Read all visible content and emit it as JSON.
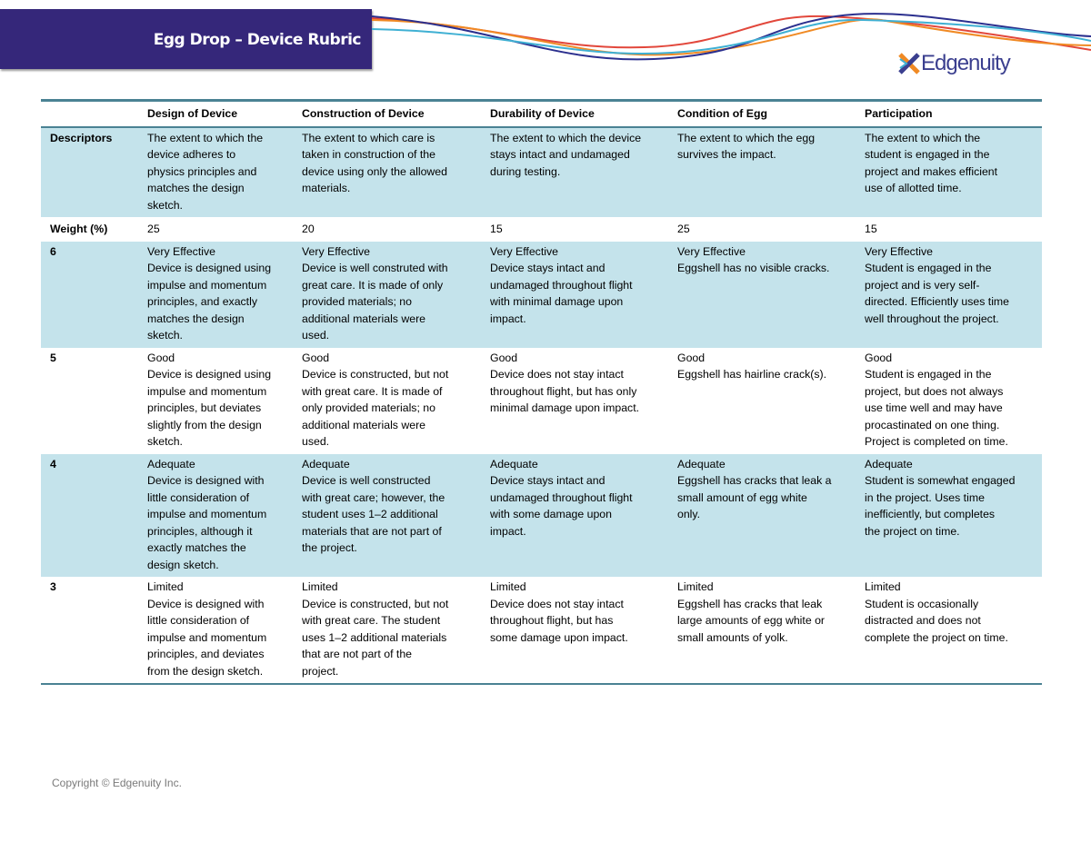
{
  "header": {
    "title": "Egg Drop – Device Rubric",
    "logo_text": "Edgenuity"
  },
  "colors": {
    "banner": "#35277a",
    "row_blue": "#c4e3eb",
    "rule": "#4a8293"
  },
  "table": {
    "columns": [
      "",
      "Design of Device",
      "Construction of Device",
      "Durability of Device",
      "Condition of Egg",
      "Participation"
    ],
    "descriptors": {
      "label": "Descriptors",
      "cells": [
        "The extent to which the\ndevice adheres to\nphysics principles and\nmatches the design\nsketch.",
        "The extent to which care is\ntaken in construction of the\ndevice using only the allowed\nmaterials.",
        "The extent to which the device\nstays intact and undamaged\nduring testing.",
        "The extent to which the egg\nsurvives the impact.",
        "The extent to which the\nstudent is engaged in the\nproject and makes efficient\nuse of allotted time."
      ]
    },
    "weight": {
      "label": "Weight (%)",
      "cells": [
        "25",
        "20",
        "15",
        "25",
        "15"
      ]
    },
    "levels": [
      {
        "score": "6",
        "cells": [
          {
            "level": "Very Effective",
            "text": "Device is designed using\nimpulse and momentum\nprinciples, and exactly\nmatches the design\nsketch."
          },
          {
            "level": "Very Effective",
            "text": "Device is well construted with\ngreat care. It is made of only\nprovided materials; no\nadditional materials were\nused."
          },
          {
            "level": "Very Effective",
            "text": "Device stays intact and\nundamaged throughout flight\nwith minimal damage upon\nimpact."
          },
          {
            "level": "Very Effective",
            "text": "Eggshell has no visible cracks."
          },
          {
            "level": "Very Effective",
            "text": "Student is engaged in the\nproject and is very self-\ndirected. Efficiently uses time\nwell throughout the project."
          }
        ]
      },
      {
        "score": "5",
        "cells": [
          {
            "level": "Good",
            "text": "Device is designed using\nimpulse and momentum\nprinciples, but deviates\nslightly from the design\nsketch."
          },
          {
            "level": "Good",
            "text": "Device is constructed, but not\nwith great care. It is made of\nonly provided materials; no\nadditional materials were\nused."
          },
          {
            "level": "Good",
            "text": "Device does not stay intact\nthroughout flight, but has only\nminimal damage upon impact."
          },
          {
            "level": "Good",
            "text": "Eggshell has hairline crack(s)."
          },
          {
            "level": "Good",
            "text": "Student is engaged in the\nproject, but does not always\nuse time well and may have\nprocastinated on one thing.\nProject is completed on time."
          }
        ]
      },
      {
        "score": "4",
        "cells": [
          {
            "level": "Adequate",
            "text": "Device is designed with\nlittle consideration of\nimpulse and momentum\nprinciples, although it\nexactly matches the\ndesign sketch."
          },
          {
            "level": "Adequate",
            "text": "Device is well constructed\nwith great care; however, the\nstudent uses 1–2 additional\nmaterials that are not part of\nthe project."
          },
          {
            "level": "Adequate",
            "text": "Device stays intact and\nundamaged throughout flight\nwith some damage upon\nimpact."
          },
          {
            "level": "Adequate",
            "text": "Eggshell has cracks that leak a\nsmall amount of egg white\nonly."
          },
          {
            "level": "Adequate",
            "text": "Student is somewhat engaged\nin the project. Uses time\ninefficiently, but completes\nthe project on time."
          }
        ]
      },
      {
        "score": "3",
        "cells": [
          {
            "level": "Limited",
            "text": "Device is designed with\nlittle consideration of\nimpulse and momentum\nprinciples, and deviates\nfrom the design sketch."
          },
          {
            "level": "Limited",
            "text": "Device is constructed, but not\nwith great care. The student\nuses 1–2 additional materials\nthat are not part of the\nproject."
          },
          {
            "level": "Limited",
            "text": "Device does not stay intact\nthroughout flight, but has\nsome damage upon impact."
          },
          {
            "level": "Limited",
            "text": "Eggshell has cracks that leak\nlarge amounts of egg white or\nsmall amounts of yolk."
          },
          {
            "level": "Limited",
            "text": "Student is occasionally\ndistracted and does not\ncomplete the project on time."
          }
        ]
      }
    ]
  },
  "footer": {
    "copyright": "Copyright  © Edgenuity Inc."
  }
}
